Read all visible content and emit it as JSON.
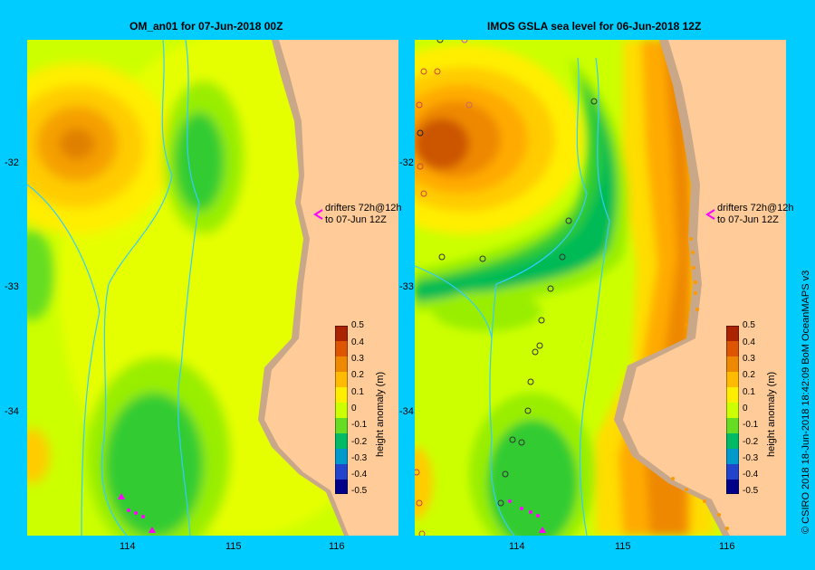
{
  "left_map": {
    "title": "OM_an01  for 07-Jun-2018 00Z",
    "note_line1": "drifters 72h@12h",
    "note_line2": "to 07-Jun 12Z"
  },
  "right_map": {
    "title": "IMOS GSLA sea level  for 06-Jun-2018 12Z",
    "note_line1": "drifters 72h@12h",
    "note_line2": "to 07-Jun 12Z"
  },
  "y_ticks": [
    "-32",
    "-33",
    "-34"
  ],
  "x_ticks": [
    "114",
    "115",
    "116"
  ],
  "colorbar": {
    "label": "height anomaly (m)",
    "ticks": [
      "0.5",
      "0.4",
      "0.3",
      "0.2",
      "0.1",
      "0",
      "-0.1",
      "-0.2",
      "-0.3",
      "-0.4",
      "-0.5"
    ]
  },
  "credit": "© CSIRO 2018   18-Jun-2018 18:42:09 BoM OceanMAPS v3",
  "colors": {
    "background": "#00ccff",
    "land": "#ffcc99",
    "shelf": "#c8a888",
    "bathymetry_contour": "#33ccff",
    "drifter_arrow": "#ff00ff"
  }
}
